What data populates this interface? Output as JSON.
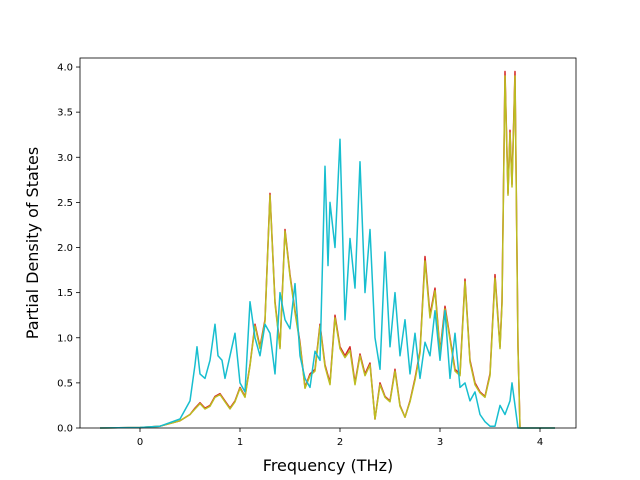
{
  "chart_data": {
    "type": "line",
    "title": "",
    "xlabel": "Frequency (THz)",
    "ylabel": "Partial Density of States",
    "xlim": [
      -0.6,
      4.36
    ],
    "ylim": [
      0,
      4.1
    ],
    "xticks": [
      0,
      1,
      2,
      3,
      4
    ],
    "yticks": [
      0.0,
      0.5,
      1.0,
      1.5,
      2.0,
      2.5,
      3.0,
      3.5,
      4.0
    ],
    "xtick_labels": [
      "0",
      "1",
      "2",
      "3",
      "4"
    ],
    "ytick_labels": [
      "0.0",
      "0.5",
      "1.0",
      "1.5",
      "2.0",
      "2.5",
      "3.0",
      "3.5",
      "4.0"
    ],
    "grid": false,
    "legend": false,
    "series": [
      {
        "color": "#d62728",
        "x": [
          -0.4,
          0.0,
          0.2,
          0.4,
          0.5,
          0.55,
          0.6,
          0.65,
          0.7,
          0.75,
          0.8,
          0.85,
          0.9,
          0.95,
          1.0,
          1.05,
          1.1,
          1.15,
          1.2,
          1.25,
          1.3,
          1.35,
          1.4,
          1.45,
          1.5,
          1.55,
          1.6,
          1.65,
          1.7,
          1.75,
          1.8,
          1.85,
          1.9,
          1.95,
          2.0,
          2.05,
          2.1,
          2.15,
          2.2,
          2.25,
          2.3,
          2.35,
          2.4,
          2.45,
          2.5,
          2.55,
          2.6,
          2.65,
          2.7,
          2.75,
          2.8,
          2.85,
          2.9,
          2.95,
          3.0,
          3.05,
          3.1,
          3.15,
          3.2,
          3.25,
          3.3,
          3.35,
          3.4,
          3.45,
          3.5,
          3.55,
          3.6,
          3.62,
          3.65,
          3.68,
          3.7,
          3.72,
          3.75,
          3.78,
          3.8,
          4.15
        ],
        "y": [
          0,
          0.005,
          0.02,
          0.08,
          0.15,
          0.22,
          0.28,
          0.22,
          0.25,
          0.35,
          0.38,
          0.3,
          0.22,
          0.3,
          0.45,
          0.35,
          0.7,
          1.15,
          0.9,
          1.2,
          2.6,
          1.4,
          0.9,
          2.2,
          1.7,
          1.3,
          0.95,
          0.45,
          0.6,
          0.65,
          1.15,
          0.7,
          0.5,
          1.25,
          0.9,
          0.8,
          0.9,
          0.5,
          0.82,
          0.6,
          0.72,
          0.1,
          0.5,
          0.35,
          0.3,
          0.65,
          0.25,
          0.12,
          0.3,
          0.55,
          0.85,
          1.9,
          1.25,
          1.55,
          0.85,
          1.35,
          1.0,
          0.65,
          0.6,
          1.65,
          0.75,
          0.5,
          0.4,
          0.35,
          0.6,
          1.7,
          0.9,
          1.4,
          3.95,
          2.6,
          3.3,
          2.7,
          3.95,
          0.9,
          0,
          0
        ]
      },
      {
        "color": "#bcbd22",
        "x": [
          -0.4,
          0.0,
          0.2,
          0.4,
          0.5,
          0.55,
          0.6,
          0.65,
          0.7,
          0.75,
          0.8,
          0.85,
          0.9,
          0.95,
          1.0,
          1.05,
          1.1,
          1.15,
          1.2,
          1.25,
          1.3,
          1.35,
          1.4,
          1.45,
          1.5,
          1.55,
          1.6,
          1.65,
          1.7,
          1.75,
          1.8,
          1.85,
          1.9,
          1.95,
          2.0,
          2.05,
          2.1,
          2.15,
          2.2,
          2.25,
          2.3,
          2.35,
          2.4,
          2.45,
          2.5,
          2.55,
          2.6,
          2.65,
          2.7,
          2.75,
          2.8,
          2.85,
          2.9,
          2.95,
          3.0,
          3.05,
          3.1,
          3.15,
          3.2,
          3.25,
          3.3,
          3.35,
          3.4,
          3.45,
          3.5,
          3.55,
          3.6,
          3.62,
          3.65,
          3.68,
          3.7,
          3.72,
          3.75,
          3.78,
          3.8,
          4.15
        ],
        "y": [
          0,
          0.005,
          0.02,
          0.08,
          0.15,
          0.21,
          0.27,
          0.21,
          0.24,
          0.34,
          0.37,
          0.29,
          0.21,
          0.29,
          0.44,
          0.34,
          0.69,
          1.13,
          0.88,
          1.18,
          2.58,
          1.38,
          0.88,
          2.18,
          1.68,
          1.28,
          0.93,
          0.44,
          0.58,
          0.63,
          1.13,
          0.68,
          0.48,
          1.22,
          0.88,
          0.78,
          0.86,
          0.48,
          0.8,
          0.58,
          0.7,
          0.1,
          0.48,
          0.34,
          0.29,
          0.63,
          0.24,
          0.12,
          0.29,
          0.53,
          0.83,
          1.85,
          1.22,
          1.52,
          0.83,
          1.32,
          0.98,
          0.63,
          0.58,
          1.62,
          0.73,
          0.48,
          0.39,
          0.34,
          0.58,
          1.66,
          0.88,
          1.37,
          3.9,
          2.58,
          3.27,
          2.67,
          3.9,
          0.88,
          0,
          0
        ]
      },
      {
        "color": "#17becf",
        "x": [
          -0.4,
          0.0,
          0.2,
          0.4,
          0.5,
          0.55,
          0.57,
          0.6,
          0.65,
          0.7,
          0.75,
          0.78,
          0.82,
          0.85,
          0.9,
          0.95,
          1.0,
          1.05,
          1.1,
          1.15,
          1.2,
          1.25,
          1.3,
          1.35,
          1.4,
          1.45,
          1.5,
          1.55,
          1.6,
          1.65,
          1.7,
          1.75,
          1.8,
          1.85,
          1.88,
          1.9,
          1.95,
          2.0,
          2.05,
          2.1,
          2.15,
          2.2,
          2.25,
          2.3,
          2.35,
          2.4,
          2.45,
          2.5,
          2.55,
          2.6,
          2.65,
          2.7,
          2.75,
          2.8,
          2.85,
          2.9,
          2.95,
          3.0,
          3.05,
          3.1,
          3.15,
          3.2,
          3.25,
          3.3,
          3.35,
          3.4,
          3.45,
          3.5,
          3.55,
          3.6,
          3.65,
          3.7,
          3.72,
          3.75,
          3.78,
          3.8,
          4.15
        ],
        "y": [
          0,
          0.005,
          0.02,
          0.1,
          0.3,
          0.7,
          0.9,
          0.6,
          0.55,
          0.75,
          1.15,
          0.8,
          0.75,
          0.55,
          0.8,
          1.05,
          0.5,
          0.4,
          1.4,
          1.0,
          0.8,
          1.15,
          1.05,
          0.6,
          1.5,
          1.2,
          1.1,
          1.6,
          0.8,
          0.55,
          0.45,
          0.85,
          0.75,
          2.9,
          1.8,
          2.5,
          2.0,
          3.2,
          1.2,
          2.1,
          1.55,
          2.95,
          1.5,
          2.2,
          1.0,
          0.65,
          1.95,
          0.9,
          1.5,
          0.8,
          1.2,
          0.6,
          1.05,
          0.55,
          0.95,
          0.8,
          1.3,
          0.75,
          1.3,
          0.55,
          1.05,
          0.45,
          0.5,
          0.3,
          0.4,
          0.15,
          0.07,
          0.02,
          0.02,
          0.25,
          0.15,
          0.3,
          0.5,
          0.25,
          0.0,
          0,
          0
        ]
      }
    ]
  }
}
